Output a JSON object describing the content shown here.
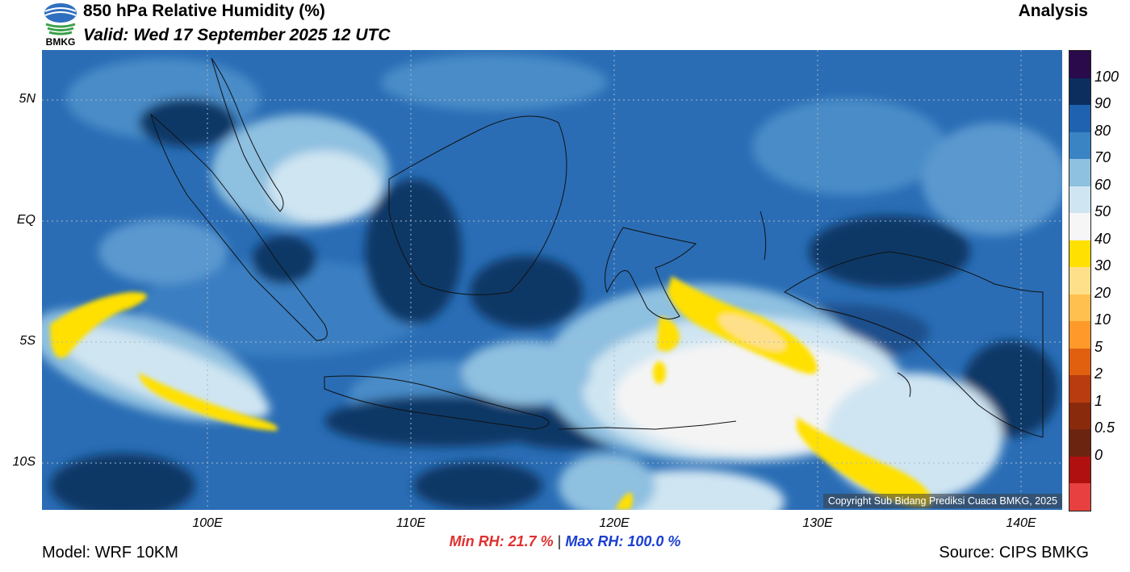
{
  "header": {
    "title": "850 hPa Relative Humidity (%)",
    "valid": "Valid: Wed 17 September 2025 12 UTC",
    "analysis": "Analysis",
    "logo_text": "BMKG"
  },
  "axes": {
    "lat_ticks": [
      "5N",
      "EQ",
      "5S",
      "10S"
    ],
    "lon_ticks": [
      "100E",
      "110E",
      "120E",
      "130E",
      "140E"
    ]
  },
  "legend": {
    "labels": [
      "100",
      "90",
      "80",
      "70",
      "60",
      "50",
      "40",
      "30",
      "20",
      "10",
      "5",
      "2",
      "1",
      "0.5",
      "0"
    ],
    "colors": [
      "#2a0a4a",
      "#0b2e5e",
      "#1f63b0",
      "#3a84c4",
      "#8ec0e0",
      "#cfe5f2",
      "#f6f6f6",
      "#ffe000",
      "#ffe08a",
      "#ffc050",
      "#ff9a2a",
      "#e06010",
      "#b83c10",
      "#8a2a0c",
      "#6b2410",
      "#b01010",
      "#e84040"
    ]
  },
  "map": {
    "copyright": "Copyright Sub Bidang Prediksi Cuaca BMKG, 2025"
  },
  "stats": {
    "min": "Min RH:  21.7 %",
    "sep": "|",
    "max": "Max RH: 100.0 %"
  },
  "footer": {
    "model": "Model: WRF 10KM",
    "source": "Source: CIPS BMKG"
  }
}
